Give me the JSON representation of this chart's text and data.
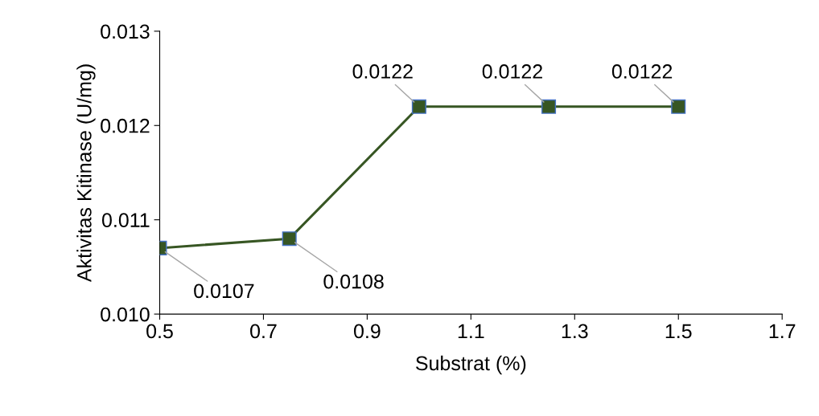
{
  "chart_data": {
    "type": "line",
    "xlabel": "Substrat (%)",
    "ylabel": "Aktivitas Kitinase (U/mg)",
    "x": [
      0.5,
      0.75,
      1.0,
      1.25,
      1.5
    ],
    "series": [
      {
        "color": "#375623",
        "values": [
          0.0107,
          0.0108,
          0.0122,
          0.0122,
          0.0122
        ]
      }
    ],
    "xlim": [
      0.5,
      1.7
    ],
    "xticks": [
      0.5,
      0.7,
      0.9,
      1.1,
      1.3,
      1.5,
      1.7
    ],
    "ylim": [
      0.01,
      0.013
    ],
    "yticks": [
      {
        "value": 0.01,
        "label": "0.010"
      },
      {
        "value": 0.011,
        "label": "0.011"
      },
      {
        "value": 0.012,
        "label": "0.012"
      },
      {
        "value": 0.013,
        "label": "0.013"
      }
    ],
    "marker": "square",
    "grid": false,
    "data_labels": true,
    "legend": false
  }
}
